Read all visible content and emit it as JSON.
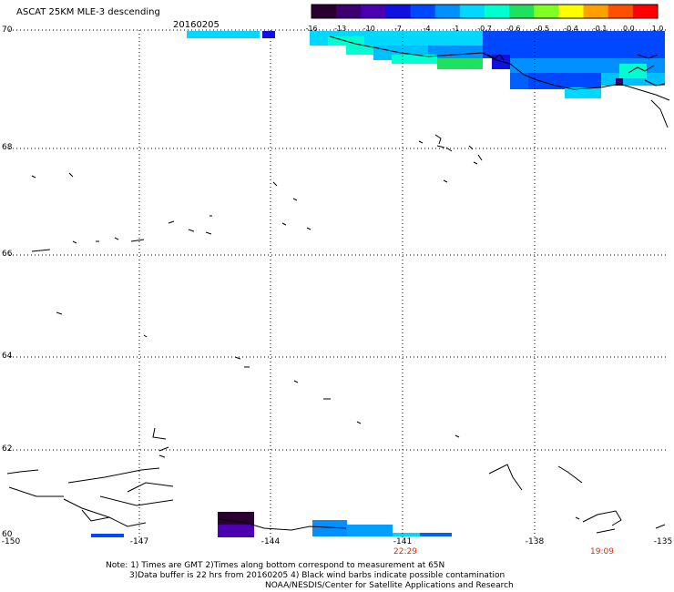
{
  "title": "ASCAT 25KM MLE-3 descending",
  "date": "20160205",
  "colorbar": {
    "labels": [
      "-16",
      "-13",
      "-10",
      "-7",
      "-4",
      "-1",
      "-0.7",
      "-0.6",
      "-0.5",
      "-0.4",
      "-0.1",
      "0.0",
      "1.0"
    ],
    "colors": [
      "#2a0030",
      "#3c0070",
      "#4a00b0",
      "#1010e0",
      "#0048ff",
      "#0090ff",
      "#00d8ff",
      "#00ffd0",
      "#20e060",
      "#80ff20",
      "#ffff00",
      "#ffa000",
      "#ff5000",
      "#ff0000"
    ]
  },
  "lat_labels": [
    "70",
    "68",
    "66",
    "64",
    "62",
    "60"
  ],
  "lon_labels": [
    "-150",
    "-147",
    "-144",
    "-141",
    "-138",
    "-135"
  ],
  "time_labels": [
    "22:29",
    "19:09"
  ],
  "notes": [
    "Note: 1) Times are GMT 2)Times along bottom correspond to measurement at 65N",
    "3)Data buffer is 22 hrs from 20160205 4) Black wind barbs indicate possible contamination",
    "NOAA/NESDIS/Center for Satellite Applications and Research"
  ]
}
